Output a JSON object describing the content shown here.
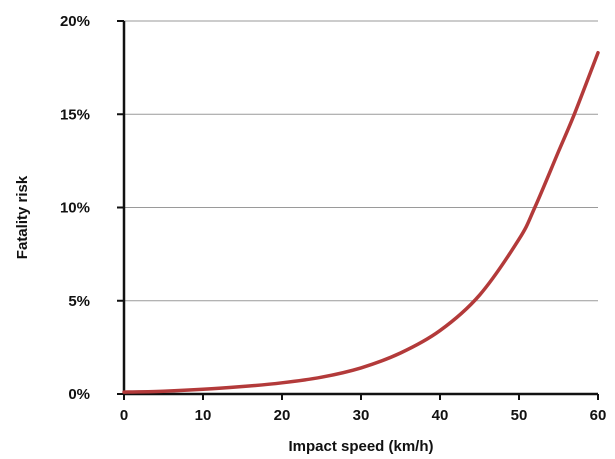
{
  "chart_data": {
    "type": "line",
    "title": "",
    "xlabel": "Impact speed (km/h)",
    "ylabel": "Fatality risk",
    "xlim": [
      0,
      60
    ],
    "ylim": [
      0,
      20
    ],
    "x_ticks": [
      0,
      10,
      20,
      30,
      40,
      50,
      60
    ],
    "x_tick_labels": [
      "0",
      "10",
      "20",
      "30",
      "40",
      "50",
      "60"
    ],
    "y_ticks": [
      0,
      5,
      10,
      15,
      20
    ],
    "y_tick_labels": [
      "0%",
      "5%",
      "10%",
      "15%",
      "20%"
    ],
    "grid": "horizontal",
    "legend": "none",
    "series": [
      {
        "color": "#b33a3a",
        "x": [
          0,
          5,
          10,
          15,
          20,
          25,
          30,
          35,
          40,
          45,
          50,
          52,
          55,
          57,
          60
        ],
        "y": [
          0.1,
          0.15,
          0.25,
          0.4,
          0.6,
          0.9,
          1.4,
          2.2,
          3.4,
          5.3,
          8.3,
          10.0,
          13.0,
          15.0,
          18.3
        ]
      }
    ]
  }
}
